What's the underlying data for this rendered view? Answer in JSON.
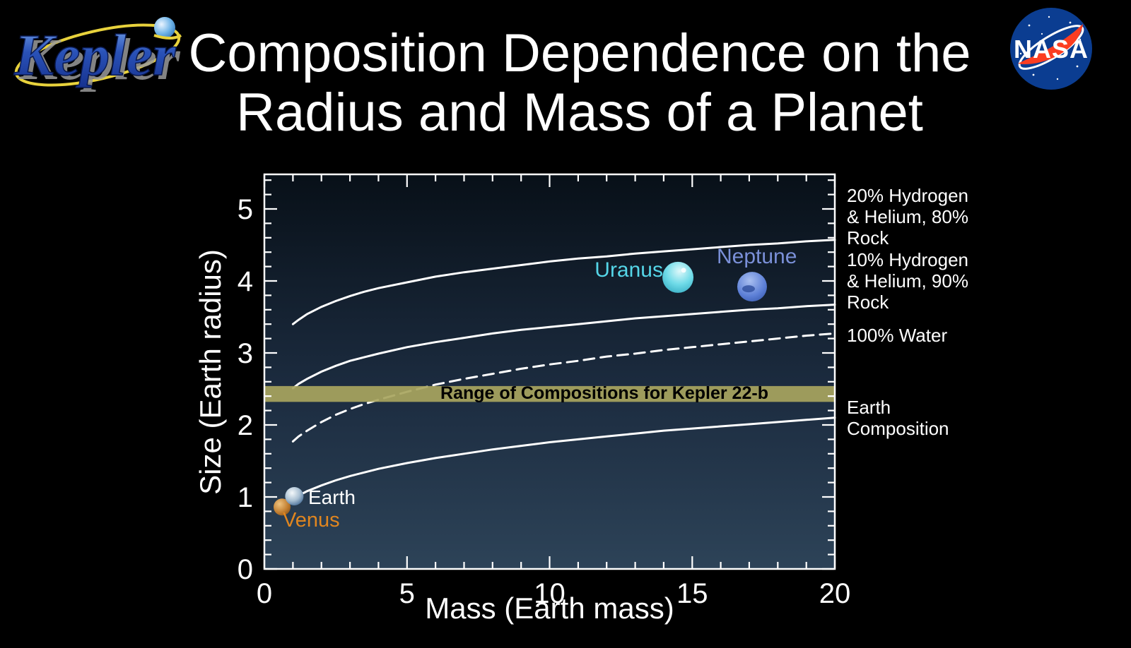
{
  "header": {
    "title_line1": "Composition Dependence on the",
    "title_line2": "Radius and Mass of a Planet",
    "kepler_logo_text": "Kepler",
    "nasa_logo_text": "NASA"
  },
  "colors": {
    "background": "#000000",
    "plot_bg_top": "#081018",
    "plot_bg_bottom": "#2d4358",
    "curve": "#ffffff",
    "band_fill": "#a8a55e",
    "band_text": "#000000",
    "uranus_label": "#55d6e8",
    "neptune_label": "#7a90d8",
    "earth_label": "#ffffff",
    "venus_label": "#e0861f",
    "nasa_blue": "#0b3d91",
    "nasa_red": "#fc3d21",
    "kepler_blue": "#2a52b8",
    "kepler_orbit_yellow": "#e8d23c"
  },
  "chart_data": {
    "type": "line",
    "title": "Composition Dependence on the Radius and Mass of a Planet",
    "xlabel": "Mass (Earth mass)",
    "ylabel": "Size (Earth radius)",
    "xlim": [
      0,
      20
    ],
    "ylim": [
      0,
      5.48
    ],
    "grid": false,
    "x_major_ticks": [
      0,
      5,
      10,
      15,
      20
    ],
    "x_major_tick_labels": [
      "0",
      "5",
      "10",
      "15",
      "20"
    ],
    "x_minor_step": 1,
    "y_major_ticks": [
      0,
      1,
      2,
      3,
      4,
      5
    ],
    "y_major_tick_labels": [
      "0",
      "1",
      "2",
      "3",
      "4",
      "5"
    ],
    "y_minor_step": 0.2,
    "legend_position": "right-outside",
    "series": [
      {
        "name": "hydrogen-helium-20pct",
        "label": "20% Hydrogen\n& Helium, 80%\nRock",
        "style": "solid",
        "x": [
          1,
          1.2,
          1.5,
          2,
          2.5,
          3,
          3.5,
          4,
          5,
          6,
          7,
          8,
          9,
          10,
          11,
          12,
          13,
          14,
          15,
          16,
          17,
          18,
          19,
          20
        ],
        "r": [
          3.4,
          3.46,
          3.54,
          3.64,
          3.72,
          3.79,
          3.85,
          3.9,
          3.98,
          4.06,
          4.12,
          4.17,
          4.22,
          4.27,
          4.31,
          4.34,
          4.38,
          4.41,
          4.44,
          4.47,
          4.5,
          4.52,
          4.55,
          4.57
        ]
      },
      {
        "name": "hydrogen-helium-10pct",
        "label": "10% Hydrogen\n& Helium, 90%\nRock",
        "style": "solid",
        "x": [
          1,
          1.2,
          1.5,
          2,
          2.5,
          3,
          3.5,
          4,
          5,
          6,
          7,
          8,
          9,
          10,
          11,
          12,
          13,
          14,
          15,
          16,
          17,
          18,
          19,
          20
        ],
        "r": [
          2.51,
          2.57,
          2.64,
          2.74,
          2.82,
          2.89,
          2.94,
          2.99,
          3.08,
          3.15,
          3.21,
          3.27,
          3.32,
          3.36,
          3.4,
          3.44,
          3.48,
          3.51,
          3.54,
          3.57,
          3.6,
          3.62,
          3.65,
          3.67
        ]
      },
      {
        "name": "water-100pct",
        "label": "100% Water",
        "style": "dashed",
        "x": [
          1,
          1.2,
          1.5,
          2,
          2.5,
          3,
          3.5,
          4,
          5,
          6,
          7,
          8,
          9,
          10,
          11,
          12,
          13,
          14,
          15,
          16,
          17,
          18,
          19,
          20
        ],
        "r": [
          1.77,
          1.84,
          1.92,
          2.04,
          2.14,
          2.22,
          2.29,
          2.35,
          2.46,
          2.56,
          2.64,
          2.71,
          2.78,
          2.84,
          2.89,
          2.95,
          2.99,
          3.04,
          3.08,
          3.12,
          3.16,
          3.2,
          3.24,
          3.27
        ]
      },
      {
        "name": "earth-composition",
        "label": "Earth\nComposition",
        "style": "solid",
        "x": [
          1.1,
          1.2,
          1.5,
          2,
          2.5,
          3,
          3.5,
          4,
          5,
          6,
          7,
          8,
          9,
          10,
          11,
          12,
          13,
          14,
          15,
          16,
          17,
          18,
          19,
          20
        ],
        "r": [
          0.99,
          1.02,
          1.08,
          1.16,
          1.23,
          1.29,
          1.34,
          1.39,
          1.47,
          1.54,
          1.6,
          1.66,
          1.71,
          1.76,
          1.8,
          1.84,
          1.88,
          1.92,
          1.95,
          1.98,
          2.01,
          2.04,
          2.07,
          2.1
        ]
      }
    ],
    "band": {
      "label": "Range of Compositions for Kepler 22-b",
      "y_min": 2.32,
      "y_max": 2.54,
      "x_min": 0,
      "x_max": 20
    },
    "planets": [
      {
        "name": "venus",
        "label": "Venus",
        "mass": 0.62,
        "radius": 0.86,
        "px_radius": 12
      },
      {
        "name": "earth",
        "label": "Earth",
        "mass": 1.05,
        "radius": 1.01,
        "px_radius": 13
      },
      {
        "name": "uranus",
        "label": "Uranus",
        "mass": 14.5,
        "radius": 4.05,
        "px_radius": 22
      },
      {
        "name": "neptune",
        "label": "Neptune",
        "mass": 17.1,
        "radius": 3.92,
        "px_radius": 21
      }
    ]
  }
}
